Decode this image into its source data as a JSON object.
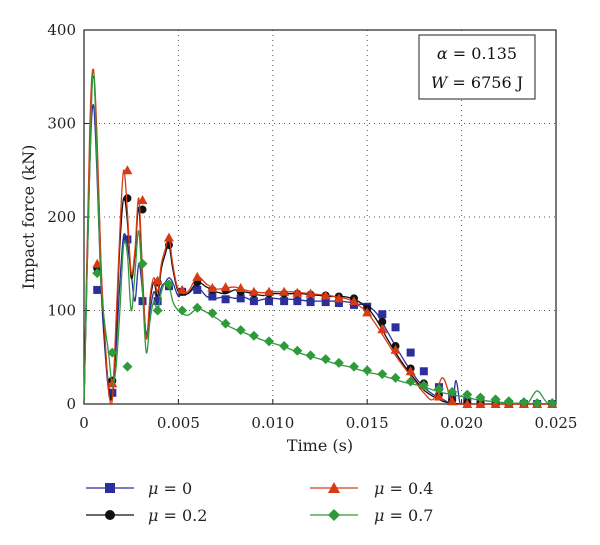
{
  "chart_data": {
    "type": "line",
    "xlabel": "Time (s)",
    "ylabel": "Impact force (kN)",
    "xlim": [
      0,
      0.025
    ],
    "ylim": [
      0,
      400
    ],
    "x_ticks": [
      "0",
      "0.005",
      "0.010",
      "0.015",
      "0.020",
      "0.025"
    ],
    "y_ticks": [
      "0",
      "100",
      "200",
      "300",
      "400"
    ],
    "grid": "dotted",
    "annotation": {
      "line1_symbol": "α",
      "line1_value": " = 0.135",
      "line2_symbol": "W",
      "line2_value": " = 6756 J"
    },
    "legend_position": "bottom",
    "series": [
      {
        "name": "μ = 0",
        "label_symbol": "μ",
        "label_value": " = 0",
        "color": "#2b2f9c",
        "marker": "square",
        "x": [
          0,
          0.0003,
          0.0005,
          0.0007,
          0.0009,
          0.0011,
          0.0013,
          0.0015,
          0.0017,
          0.0019,
          0.0021,
          0.0023,
          0.0025,
          0.0027,
          0.0029,
          0.0031,
          0.0033,
          0.0035,
          0.0037,
          0.0039,
          0.0041,
          0.0043,
          0.0045,
          0.0047,
          0.005,
          0.0052,
          0.0055,
          0.006,
          0.0065,
          0.007,
          0.0075,
          0.008,
          0.0085,
          0.009,
          0.0095,
          0.01,
          0.0105,
          0.011,
          0.0115,
          0.012,
          0.0125,
          0.013,
          0.0135,
          0.014,
          0.0145,
          0.015,
          0.0155,
          0.016,
          0.0165,
          0.017,
          0.0175,
          0.018,
          0.0185,
          0.019,
          0.0195,
          0.0197,
          0.0199,
          0.02,
          0.0205,
          0.021,
          0.0215,
          0.022,
          0.0225,
          0.023,
          0.0235,
          0.024,
          0.0245,
          0.025
        ],
        "y": [
          0,
          250,
          320,
          240,
          125,
          60,
          15,
          10,
          60,
          130,
          180,
          170,
          140,
          110,
          150,
          120,
          75,
          100,
          120,
          110,
          125,
          130,
          135,
          130,
          115,
          120,
          118,
          125,
          115,
          113,
          115,
          113,
          114,
          110,
          112,
          113,
          112,
          112,
          111,
          110,
          110,
          110,
          110,
          109,
          107,
          105,
          97,
          80,
          62,
          45,
          30,
          18,
          10,
          5,
          2,
          25,
          2,
          0,
          0,
          0,
          0,
          0,
          0,
          0,
          0,
          0,
          0,
          0
        ],
        "marker_x": [
          0.0007,
          0.0015,
          0.0023,
          0.0031,
          0.0039,
          0.0045,
          0.0052,
          0.006,
          0.0068,
          0.0075,
          0.0083,
          0.009,
          0.0098,
          0.0106,
          0.0113,
          0.012,
          0.0128,
          0.0135,
          0.0143,
          0.015,
          0.0158,
          0.0165,
          0.0173,
          0.018,
          0.0188,
          0.0195,
          0.0203,
          0.021,
          0.0218,
          0.0225,
          0.0233,
          0.024,
          0.0248
        ],
        "marker_y": [
          122,
          12,
          176,
          110,
          110,
          126,
          120,
          122,
          115,
          112,
          113,
          110,
          110,
          110,
          110,
          109,
          109,
          108,
          106,
          104,
          96,
          82,
          55,
          35,
          18,
          8,
          3,
          1,
          0,
          0,
          0,
          0,
          0
        ]
      },
      {
        "name": "μ = 0.2",
        "label_symbol": "μ",
        "label_value": " = 0.2",
        "color": "#111111",
        "marker": "circle",
        "x": [
          0,
          0.0003,
          0.0005,
          0.0007,
          0.0009,
          0.0011,
          0.0013,
          0.0015,
          0.0017,
          0.0019,
          0.0021,
          0.0023,
          0.0025,
          0.0027,
          0.0029,
          0.0031,
          0.0033,
          0.0035,
          0.0037,
          0.0039,
          0.0041,
          0.0043,
          0.0045,
          0.0047,
          0.005,
          0.0055,
          0.006,
          0.0065,
          0.007,
          0.0075,
          0.008,
          0.0085,
          0.009,
          0.0095,
          0.01,
          0.0105,
          0.011,
          0.0115,
          0.012,
          0.0125,
          0.013,
          0.0135,
          0.014,
          0.0145,
          0.015,
          0.0155,
          0.016,
          0.0165,
          0.017,
          0.0175,
          0.018,
          0.0185,
          0.019,
          0.0195,
          0.02,
          0.0205,
          0.021,
          0.0215,
          0.022,
          0.0225,
          0.023,
          0.0235,
          0.024,
          0.0245,
          0.025
        ],
        "y": [
          0,
          270,
          350,
          270,
          145,
          70,
          20,
          8,
          80,
          170,
          220,
          195,
          135,
          160,
          210,
          135,
          70,
          110,
          130,
          115,
          145,
          160,
          170,
          145,
          120,
          118,
          130,
          125,
          120,
          118,
          122,
          120,
          118,
          116,
          118,
          118,
          118,
          118,
          117,
          116,
          115,
          115,
          114,
          110,
          103,
          90,
          72,
          55,
          40,
          27,
          15,
          8,
          3,
          1,
          0,
          0,
          0,
          0,
          0,
          0,
          0,
          0,
          0,
          0,
          0
        ],
        "marker_x": [
          0.0007,
          0.0015,
          0.0023,
          0.0031,
          0.0039,
          0.0045,
          0.0052,
          0.006,
          0.0068,
          0.0075,
          0.0083,
          0.009,
          0.0098,
          0.0106,
          0.0113,
          0.012,
          0.0128,
          0.0135,
          0.0143,
          0.015,
          0.0158,
          0.0165,
          0.0173,
          0.018,
          0.0188,
          0.0195,
          0.0203,
          0.021,
          0.0218,
          0.0225,
          0.0233,
          0.024,
          0.0248
        ],
        "marker_y": [
          145,
          25,
          220,
          208,
          130,
          170,
          120,
          130,
          122,
          122,
          120,
          118,
          118,
          118,
          118,
          117,
          116,
          115,
          113,
          102,
          88,
          62,
          38,
          22,
          10,
          4,
          1,
          0,
          0,
          0,
          0,
          0,
          0
        ]
      },
      {
        "name": "μ = 0.4",
        "label_symbol": "μ",
        "label_value": " = 0.4",
        "color": "#d83a14",
        "marker": "triangle",
        "x": [
          0,
          0.0003,
          0.0005,
          0.0007,
          0.0009,
          0.0011,
          0.0013,
          0.0015,
          0.0017,
          0.0019,
          0.0021,
          0.0023,
          0.0025,
          0.0027,
          0.0029,
          0.0031,
          0.0033,
          0.0035,
          0.0037,
          0.0039,
          0.0041,
          0.0043,
          0.0045,
          0.0047,
          0.005,
          0.0055,
          0.006,
          0.0065,
          0.007,
          0.0075,
          0.008,
          0.0085,
          0.009,
          0.0095,
          0.01,
          0.0105,
          0.011,
          0.0115,
          0.012,
          0.0125,
          0.013,
          0.0135,
          0.014,
          0.0145,
          0.015,
          0.0155,
          0.016,
          0.0165,
          0.017,
          0.0175,
          0.018,
          0.0185,
          0.019,
          0.0195,
          0.02,
          0.0205,
          0.021,
          0.0215,
          0.022,
          0.0225,
          0.023,
          0.0235,
          0.024,
          0.0245,
          0.025
        ],
        "y": [
          0,
          290,
          358,
          280,
          150,
          75,
          15,
          5,
          90,
          185,
          250,
          205,
          140,
          165,
          220,
          140,
          70,
          115,
          135,
          120,
          150,
          165,
          178,
          150,
          122,
          120,
          136,
          128,
          123,
          124,
          125,
          122,
          120,
          119,
          120,
          120,
          120,
          119,
          118,
          117,
          116,
          114,
          112,
          106,
          98,
          84,
          68,
          52,
          38,
          25,
          12,
          5,
          28,
          2,
          0,
          0,
          0,
          0,
          0,
          0,
          0,
          0,
          0,
          0,
          0
        ],
        "marker_x": [
          0.0007,
          0.0015,
          0.0023,
          0.0031,
          0.0039,
          0.0045,
          0.0052,
          0.006,
          0.0068,
          0.0075,
          0.0083,
          0.009,
          0.0098,
          0.0106,
          0.0113,
          0.012,
          0.0128,
          0.0135,
          0.0143,
          0.015,
          0.0158,
          0.0165,
          0.0173,
          0.018,
          0.0188,
          0.0195,
          0.0203,
          0.021,
          0.0218,
          0.0225,
          0.0233,
          0.024,
          0.0248
        ],
        "marker_y": [
          150,
          22,
          250,
          218,
          132,
          178,
          122,
          136,
          124,
          125,
          124,
          120,
          120,
          120,
          119,
          118,
          116,
          113,
          110,
          98,
          80,
          58,
          35,
          20,
          8,
          3,
          0,
          0,
          0,
          0,
          0,
          0,
          0
        ]
      },
      {
        "name": "μ = 0.7",
        "label_symbol": "μ",
        "label_value": " = 0.7",
        "color": "#2e9a3a",
        "marker": "diamond",
        "x": [
          0,
          0.0003,
          0.0005,
          0.0007,
          0.0009,
          0.0011,
          0.0013,
          0.0015,
          0.0017,
          0.0019,
          0.0021,
          0.0023,
          0.0025,
          0.0027,
          0.0029,
          0.0031,
          0.0033,
          0.0035,
          0.0037,
          0.0039,
          0.0041,
          0.0043,
          0.0045,
          0.0047,
          0.005,
          0.0055,
          0.006,
          0.0065,
          0.007,
          0.0075,
          0.008,
          0.0085,
          0.009,
          0.0095,
          0.01,
          0.0105,
          0.011,
          0.0115,
          0.012,
          0.0125,
          0.013,
          0.0135,
          0.014,
          0.0145,
          0.015,
          0.0155,
          0.016,
          0.0165,
          0.017,
          0.0175,
          0.018,
          0.0185,
          0.019,
          0.0195,
          0.02,
          0.0205,
          0.021,
          0.0215,
          0.022,
          0.0225,
          0.023,
          0.0235,
          0.024,
          0.0245,
          0.025
        ],
        "y": [
          0,
          250,
          355,
          250,
          130,
          85,
          55,
          20,
          40,
          100,
          170,
          160,
          100,
          140,
          185,
          120,
          55,
          90,
          110,
          100,
          120,
          130,
          128,
          110,
          100,
          95,
          102,
          98,
          92,
          85,
          80,
          76,
          72,
          68,
          65,
          62,
          58,
          54,
          51,
          48,
          45,
          42,
          40,
          37,
          34,
          32,
          29,
          26,
          23,
          21,
          18,
          15,
          12,
          10,
          8,
          6,
          4,
          3,
          2,
          1,
          1,
          1,
          14,
          2,
          0
        ],
        "marker_x": [
          0.0007,
          0.0015,
          0.0023,
          0.0031,
          0.0039,
          0.0045,
          0.0052,
          0.006,
          0.0068,
          0.0075,
          0.0083,
          0.009,
          0.0098,
          0.0106,
          0.0113,
          0.012,
          0.0128,
          0.0135,
          0.0143,
          0.015,
          0.0158,
          0.0165,
          0.0173,
          0.018,
          0.0188,
          0.0195,
          0.0203,
          0.021,
          0.0218,
          0.0225,
          0.0233,
          0.024,
          0.0248
        ],
        "marker_y": [
          140,
          55,
          40,
          150,
          100,
          128,
          100,
          103,
          97,
          86,
          79,
          73,
          67,
          62,
          57,
          52,
          48,
          44,
          40,
          36,
          32,
          28,
          24,
          20,
          16,
          13,
          10,
          7,
          5,
          3,
          2,
          1,
          1
        ]
      }
    ]
  }
}
